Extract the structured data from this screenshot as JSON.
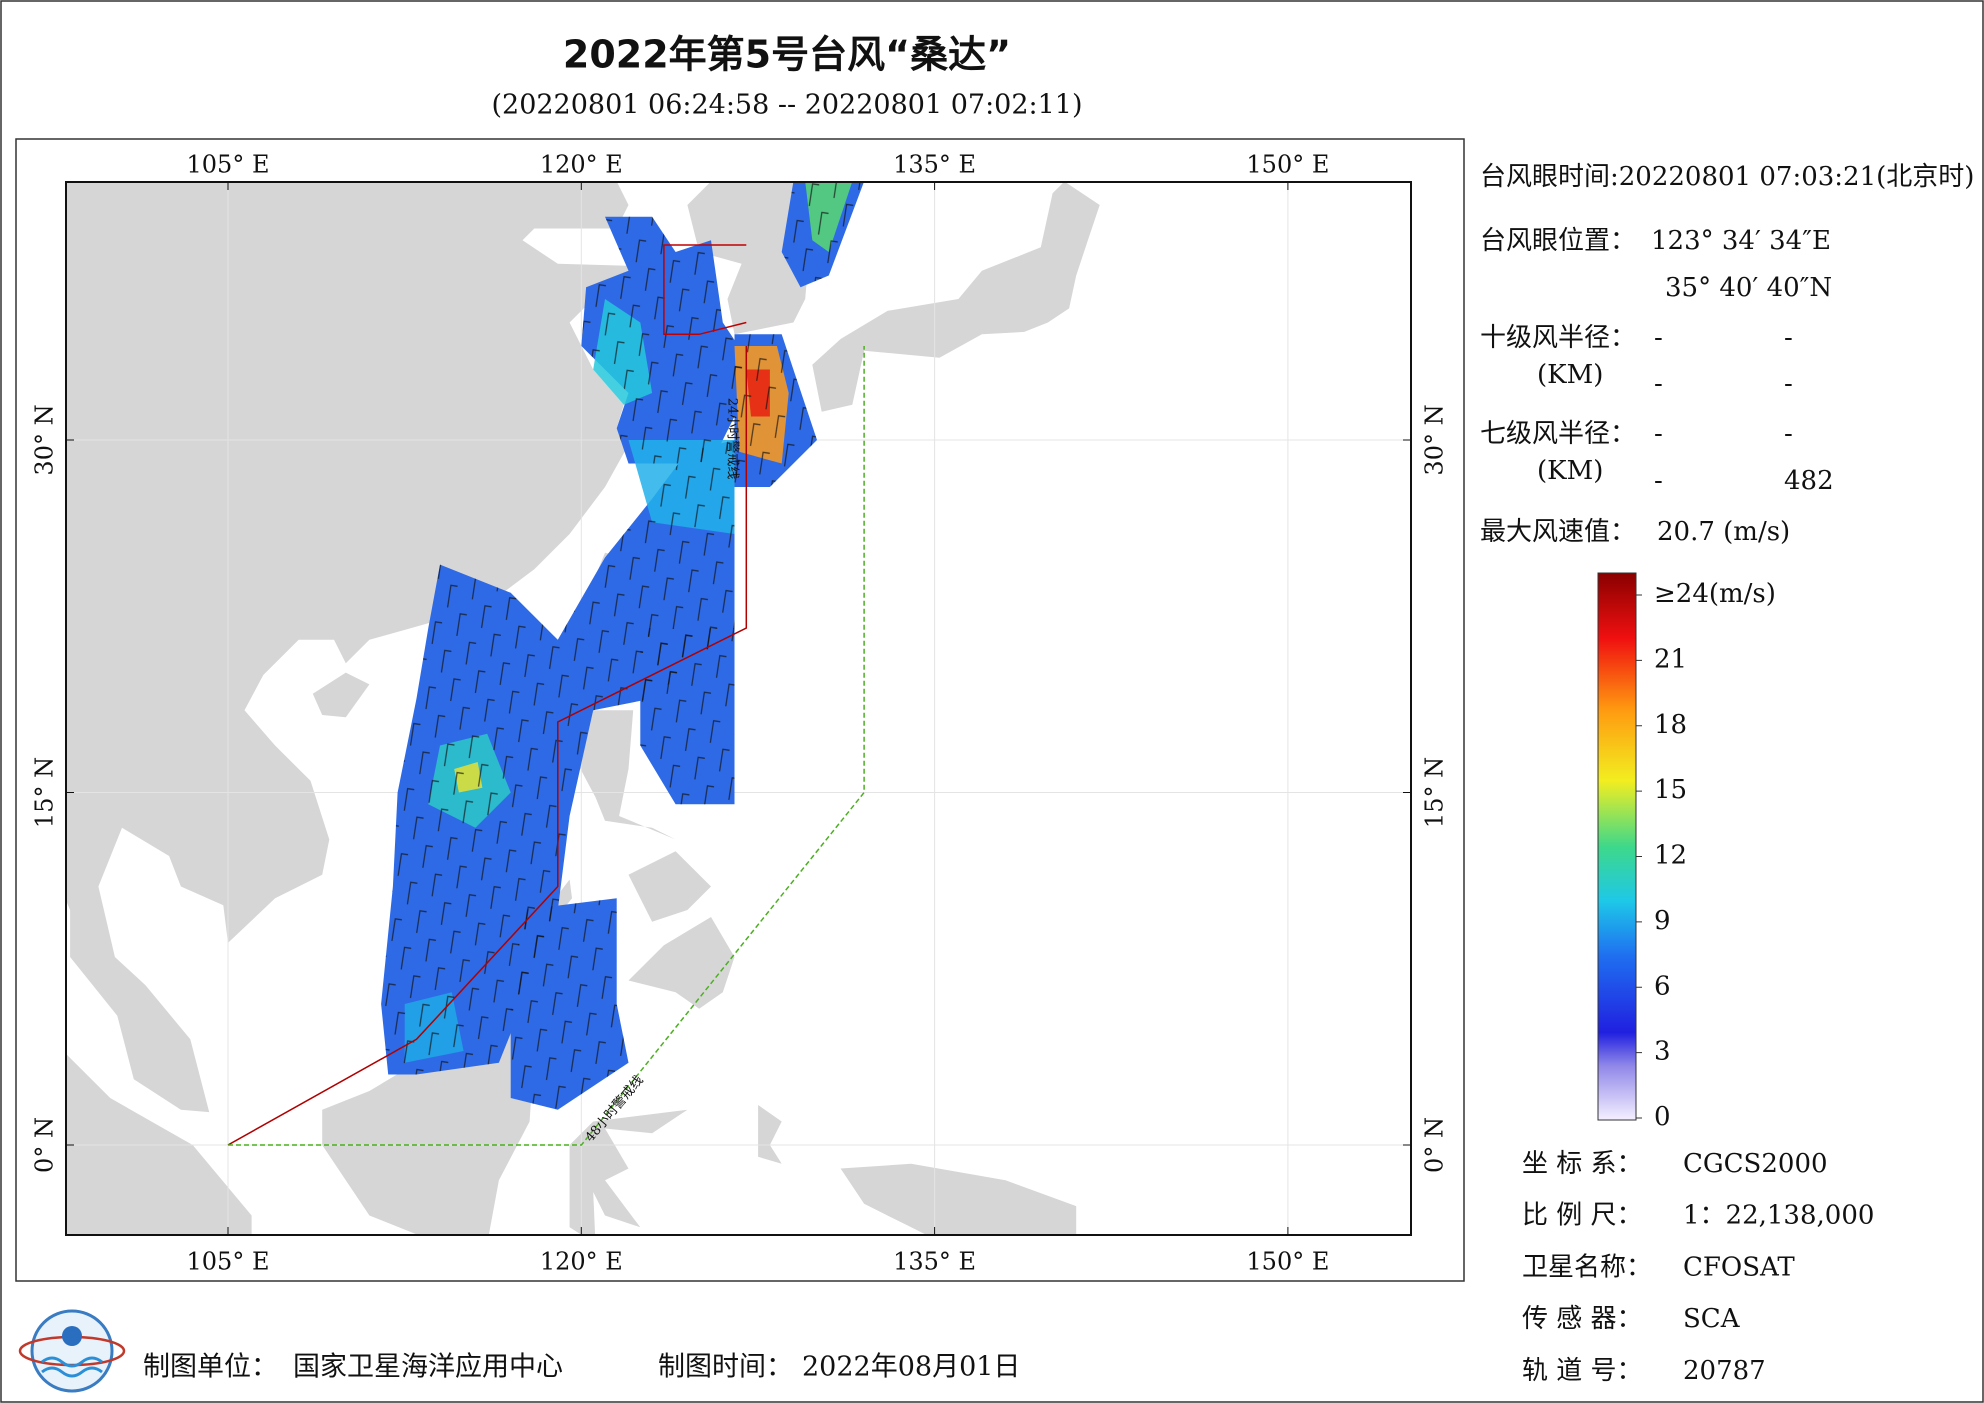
{
  "header": {
    "title": "2022年第5号台风“桑达”",
    "subtitle": "(20220801 06:24:58 -- 20220801 07:02:11)"
  },
  "map": {
    "lon_labels": [
      "105° E",
      "120° E",
      "135° E",
      "150° E"
    ],
    "lat_labels": [
      "30° N",
      "15° N",
      "0° N"
    ],
    "warning_lines": [
      "24小时警戒线",
      "48小时警戒线"
    ]
  },
  "info": {
    "eye_time": "台风眼时间:20220801 07:03:21(北京时)",
    "eye_position_label": "台风眼位置：",
    "eye_lon": "123° 34′ 34″E",
    "eye_lat": "35° 40′ 40″N",
    "r10_label": "十级风半径：",
    "r10_unit": "(KM)",
    "r10": [
      [
        "-",
        "-"
      ],
      [
        "-",
        "-"
      ]
    ],
    "r7_label": "七级风半径：",
    "r7_unit": "(KM)",
    "r7": [
      [
        "-",
        "-"
      ],
      [
        "-",
        "482"
      ]
    ],
    "max_wind_label": "最大风速值：",
    "max_wind": "20.7  (m/s)"
  },
  "colorbar": {
    "range": [
      0,
      24
    ],
    "ticks": [
      {
        "value": 24,
        "label": "≥24(m/s)"
      },
      21,
      18,
      15,
      12,
      9,
      6,
      3,
      0
    ]
  },
  "meta": [
    {
      "label": "坐 标 系：",
      "value": "CGCS2000"
    },
    {
      "label": "比 例 尺：",
      "value": "1：22,138,000"
    },
    {
      "label": "卫星名称：",
      "value": "CFOSAT"
    },
    {
      "label": "传 感 器：",
      "value": "SCA"
    },
    {
      "label": "轨 道 号：",
      "value": "20787"
    }
  ],
  "footer": {
    "unit_label": "制图单位：",
    "unit": "国家卫星海洋应用中心",
    "time_label": "制图时间：",
    "time": "2022年08月01日"
  }
}
